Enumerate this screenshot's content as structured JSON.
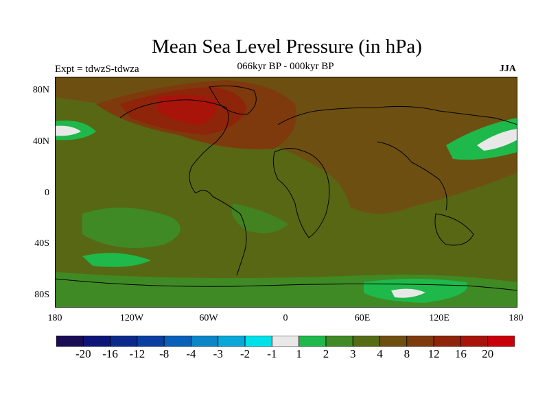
{
  "title": "Mean Sea Level Pressure (in hPa)",
  "subtitle": "066kyr BP - 000kyr BP",
  "experiment": "Expt = tdwzS-tdwza",
  "season": "JJA",
  "map": {
    "lat_ticks": [
      "80N",
      "40N",
      "0",
      "40S",
      "80S"
    ],
    "lon_ticks": [
      "180",
      "120W",
      "60W",
      "0",
      "60E",
      "120E",
      "180"
    ],
    "base_color": "#6e4f12"
  },
  "colorbar": {
    "colors": [
      "#1a0b55",
      "#0d1478",
      "#0b2a8c",
      "#083fa0",
      "#0a5fb8",
      "#0a86c8",
      "#0aa8d8",
      "#00e0e8",
      "#e8e8e8",
      "#1fb84a",
      "#3f8a24",
      "#556b14",
      "#6e4f12",
      "#7e3a0c",
      "#8e240a",
      "#a8140a",
      "#c8000a"
    ],
    "labels": [
      "-20",
      "-16",
      "-12",
      "-8",
      "-4",
      "-3",
      "-2",
      "-1",
      "1",
      "2",
      "3",
      "4",
      "8",
      "12",
      "16",
      "20"
    ]
  }
}
